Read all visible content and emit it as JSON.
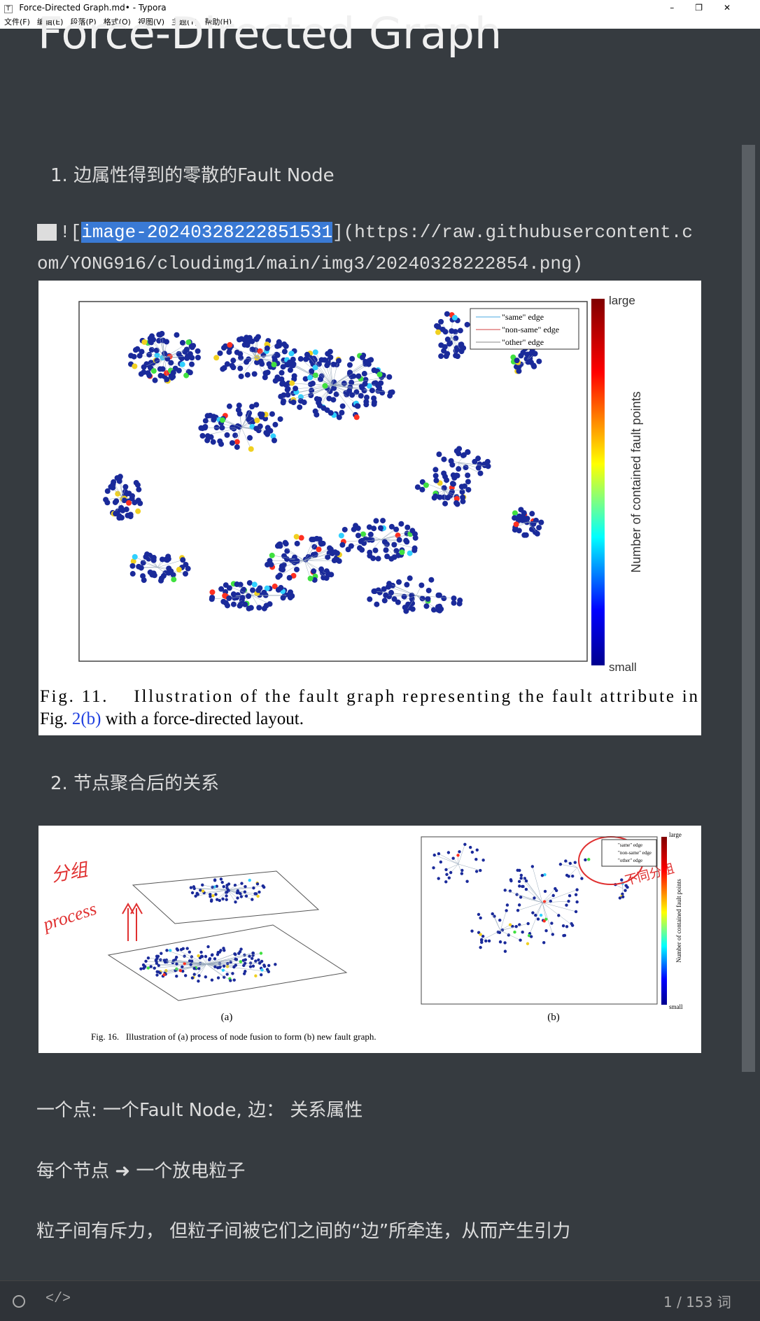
{
  "window": {
    "title": "Force-Directed Graph.md• - Typora"
  },
  "menu": [
    "文件(F)",
    "编辑(E)",
    "段落(P)",
    "格式(O)",
    "视图(V)",
    "主题(T)",
    "帮助(H)"
  ],
  "document": {
    "heading": "Force-Directed Graph",
    "list_items": [
      "1. 边属性得到的零散的Fault Node",
      "2. 节点聚合后的关系"
    ],
    "image_markdown": {
      "prefix": "![",
      "alt": "image-20240328222851531",
      "suffix": "](https://raw.githubusercontent.com/YONG916/cloudimg1/main/img3/20240328222854.png)"
    },
    "figure1": {
      "legend": [
        "\"same\" edge",
        "\"non-same\" edge",
        "\"other\" edge"
      ],
      "colorbar_top": "large",
      "colorbar_bottom": "small",
      "colorbar_label": "Number of contained fault points",
      "caption_line1": "Fig. 11.    Illustration of the fault graph representing the fault attribute in",
      "caption_line2_start": "Fig. ",
      "caption_ref": "2(b)",
      "caption_line2_end": " with a force-directed layout."
    },
    "figure2": {
      "annotations": [
        "分组",
        "process",
        "不同分组"
      ],
      "legend": [
        "\"same\" edge",
        "\"non-same\" edge",
        "\"other\" edge"
      ],
      "colorbar_top": "large",
      "colorbar_bottom": "small",
      "colorbar_label": "Number of contained fault points",
      "label_a": "(a)",
      "label_b": "(b)",
      "caption": "Fig. 16.   Illustration of (a) process of node fusion to form (b) new fault graph."
    },
    "paragraphs": [
      "一个点: 一个Fault Node, 边：  关系属性",
      "每个节点 ➜ 一个放电粒子",
      "粒子间有斥力， 但粒子间被它们之间的“边”所牵连，从而产生引力"
    ]
  },
  "status": {
    "word_count": "1 / 153 词"
  }
}
